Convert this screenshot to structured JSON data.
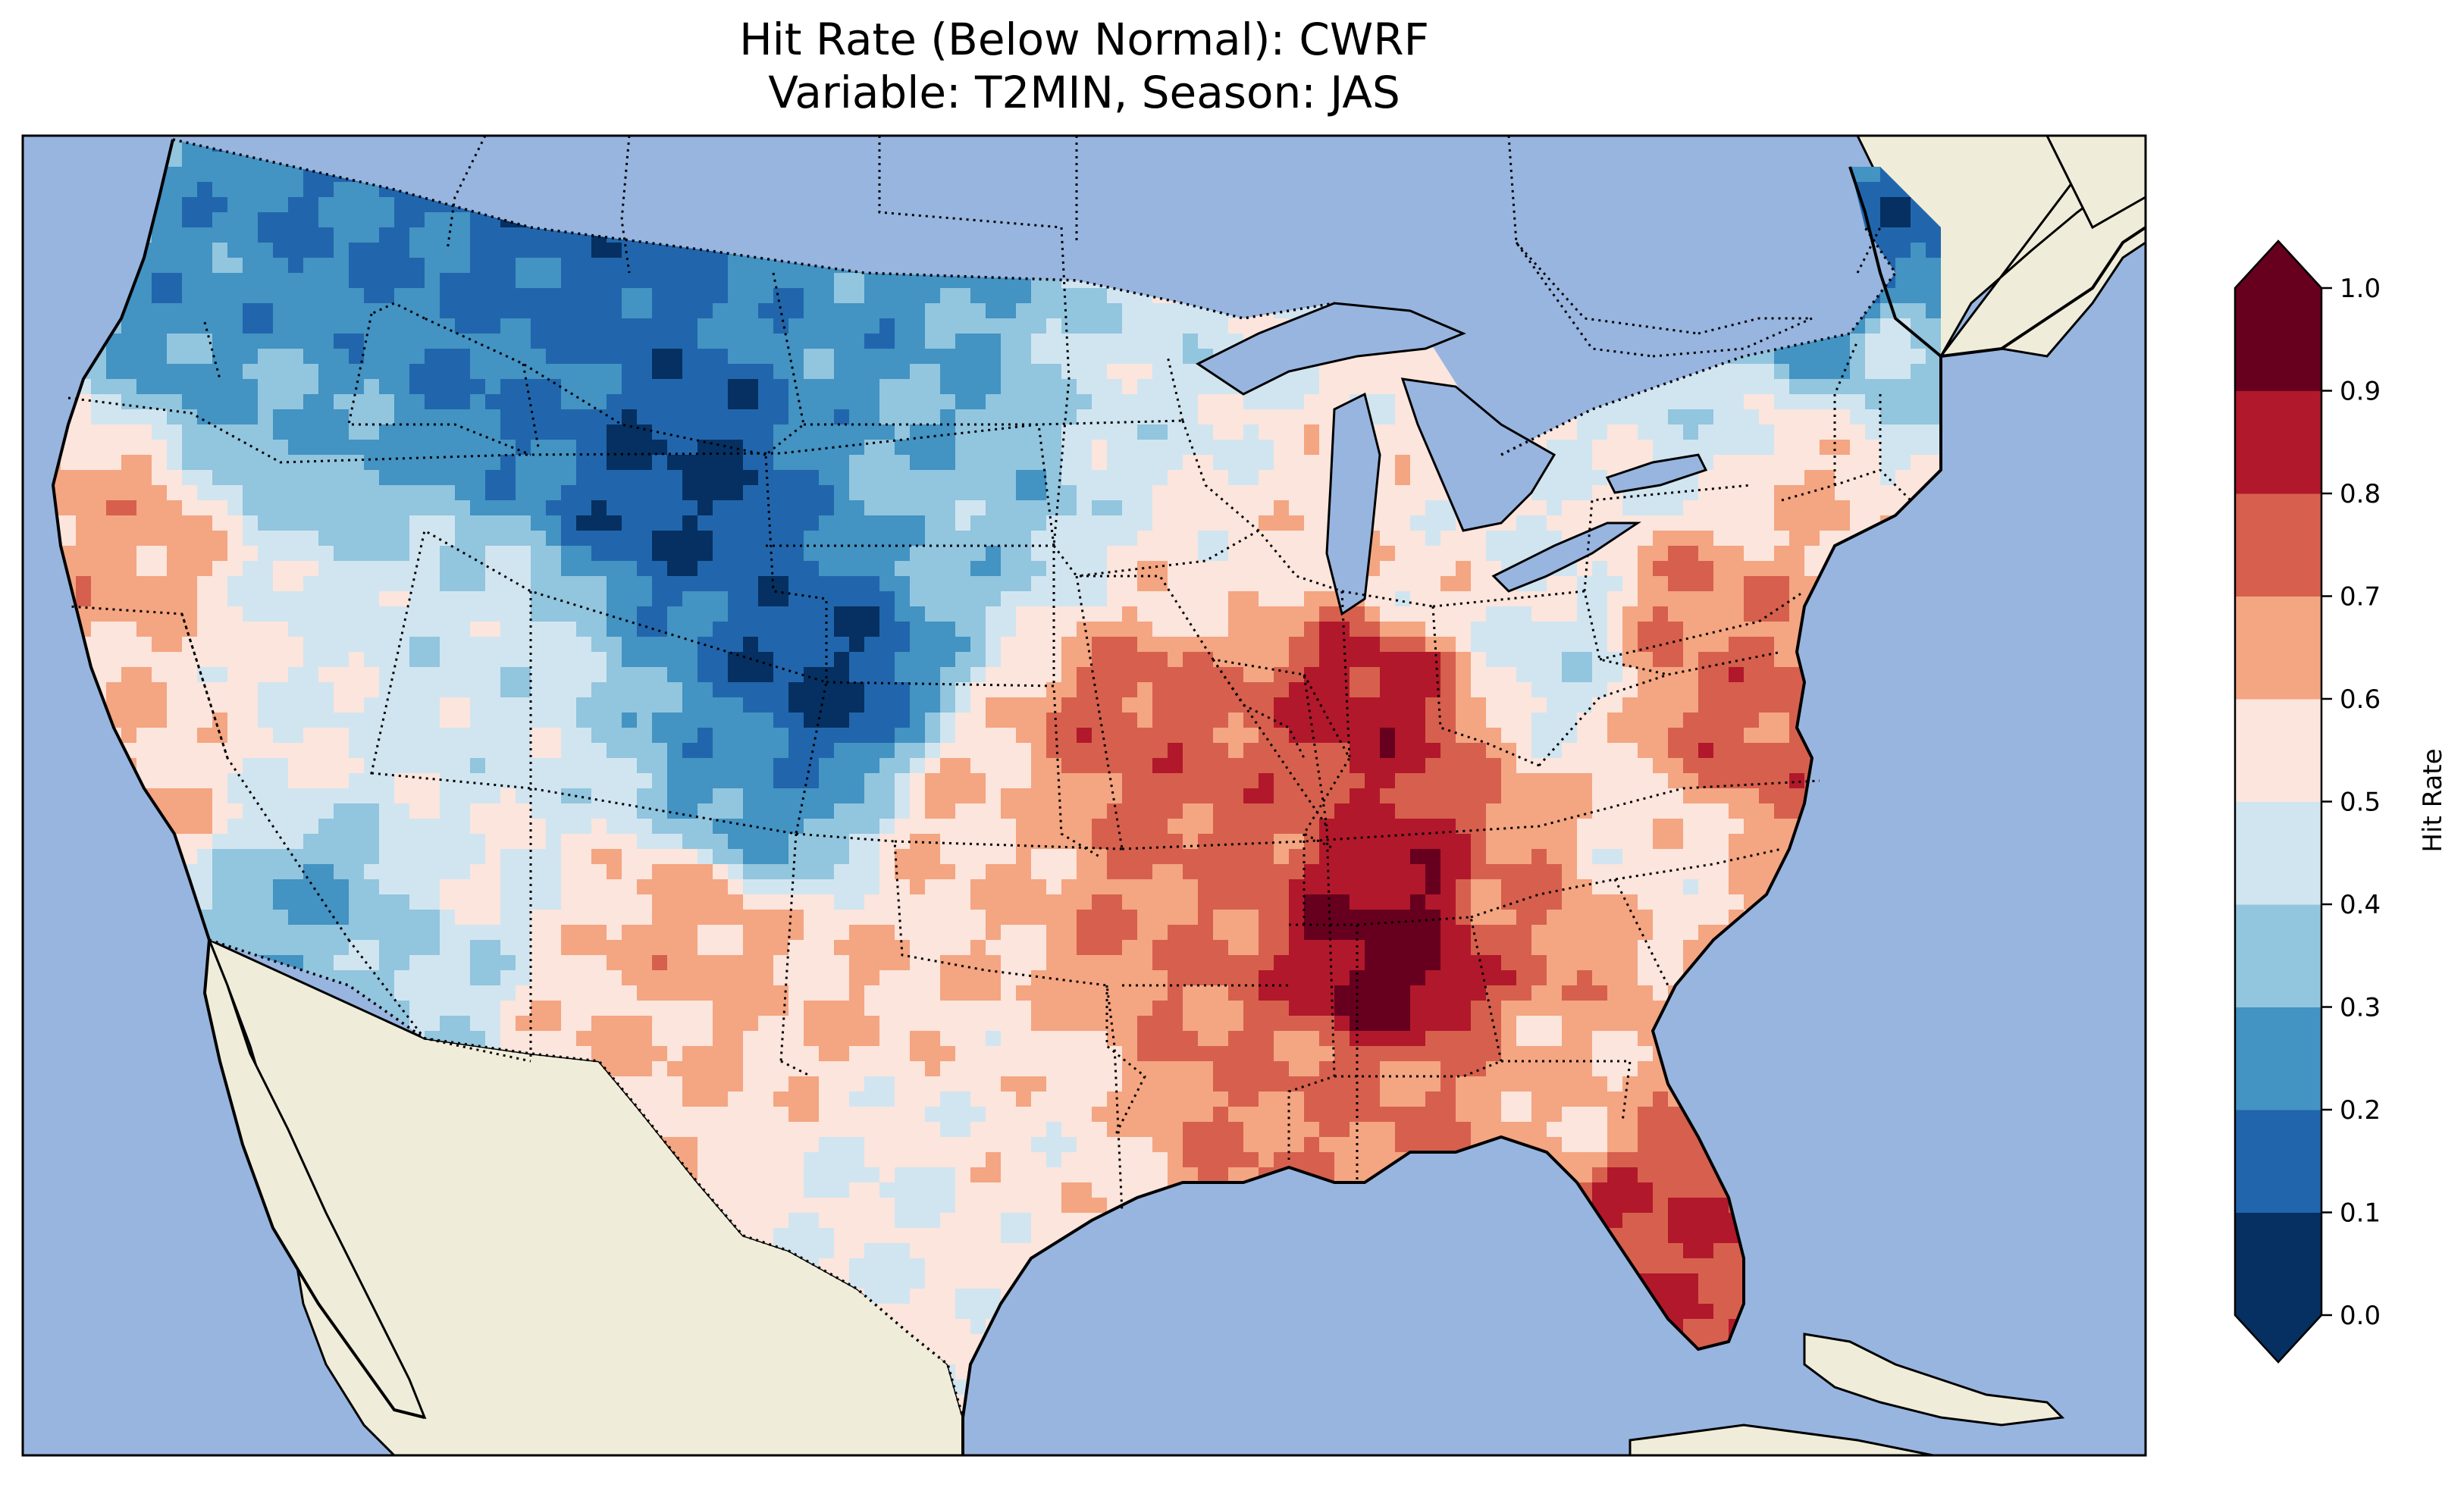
{
  "title": {
    "line1": "Hit Rate (Below Normal): CWRF",
    "line2": "Variable: T2MIN, Season: JAS"
  },
  "colorbar": {
    "label": "Hit Rate",
    "ticks": [
      "0.0",
      "0.1",
      "0.2",
      "0.3",
      "0.4",
      "0.5",
      "0.6",
      "0.7",
      "0.8",
      "0.9",
      "1.0"
    ],
    "colors": [
      "#053061",
      "#2166ac",
      "#4393c3",
      "#92c5de",
      "#d1e5f0",
      "#fbe5dc",
      "#f4a582",
      "#d6604d",
      "#b2182b",
      "#67001f"
    ],
    "extend": "both"
  },
  "map_colors": {
    "ocean": "#98b5e0",
    "land": "#efedd9",
    "lake": "#98b5e0"
  },
  "chart_data": {
    "type": "heatmap",
    "title": "Hit Rate (Below Normal): CWRF / Variable: T2MIN, Season: JAS",
    "region": "Contiguous United States",
    "value_range": [
      0.0,
      1.0
    ],
    "color_label": "Hit Rate",
    "levels": [
      0.0,
      0.1,
      0.2,
      0.3,
      0.4,
      0.5,
      0.6,
      0.7,
      0.8,
      0.9,
      1.0
    ],
    "regional_values": [
      {
        "region": "Northern Rockies / Montana",
        "value": 0.15
      },
      {
        "region": "Northern Plains / Dakotas",
        "value": 0.25
      },
      {
        "region": "Pacific Northwest interior",
        "value": 0.3
      },
      {
        "region": "Colorado Rockies",
        "value": 0.1
      },
      {
        "region": "Great Basin",
        "value": 0.45
      },
      {
        "region": "California coast",
        "value": 0.6
      },
      {
        "region": "Southwest desert",
        "value": 0.5
      },
      {
        "region": "Southern Plains / Texas",
        "value": 0.6
      },
      {
        "region": "Ozarks / Missouri",
        "value": 0.75
      },
      {
        "region": "Indiana",
        "value": 0.85
      },
      {
        "region": "Tennessee / Northern Alabama",
        "value": 0.9
      },
      {
        "region": "Gulf Coast",
        "value": 0.7
      },
      {
        "region": "Florida peninsula",
        "value": 0.8
      },
      {
        "region": "Mid-Atlantic",
        "value": 0.7
      },
      {
        "region": "Northern New England (Maine)",
        "value": 0.15
      },
      {
        "region": "Great Lakes (Michigan / Ohio)",
        "value": 0.5
      }
    ]
  }
}
